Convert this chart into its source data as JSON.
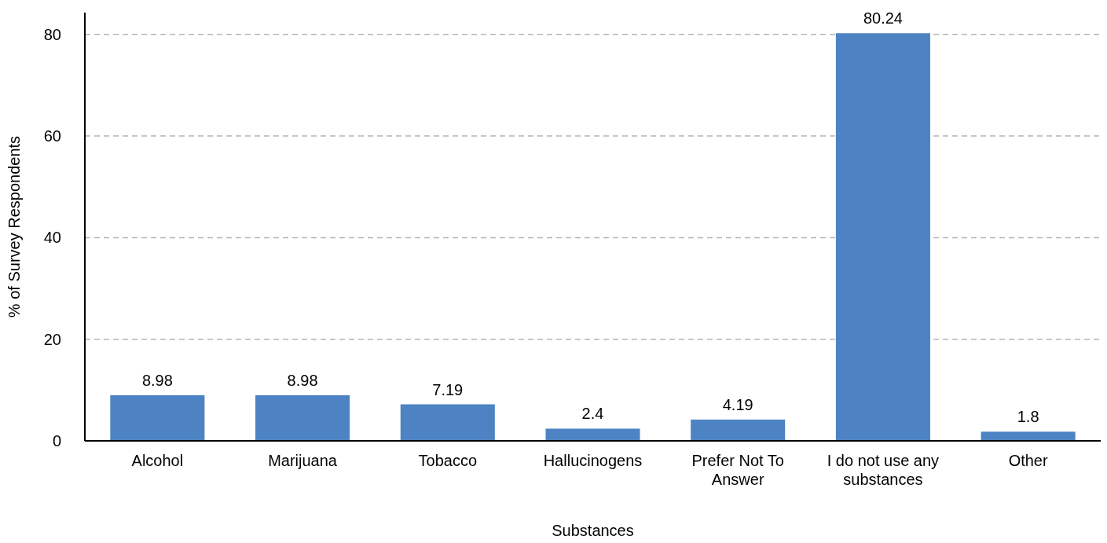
{
  "chart_data": {
    "type": "bar",
    "xlabel": "Substances",
    "ylabel": "% of Survey Respondents",
    "categories": [
      "Alcohol",
      "Marijuana",
      "Tobacco",
      "Hallucinogens",
      "Prefer Not To Answer",
      "I do not use any substances",
      "Other"
    ],
    "values": [
      8.98,
      8.98,
      7.19,
      2.4,
      4.19,
      80.24,
      1.8
    ],
    "color": "#4d83c3",
    "ylim": [
      0,
      84.3
    ],
    "yticks": [
      0,
      20,
      40,
      60,
      80
    ],
    "grid": "y",
    "data_labels": true
  }
}
